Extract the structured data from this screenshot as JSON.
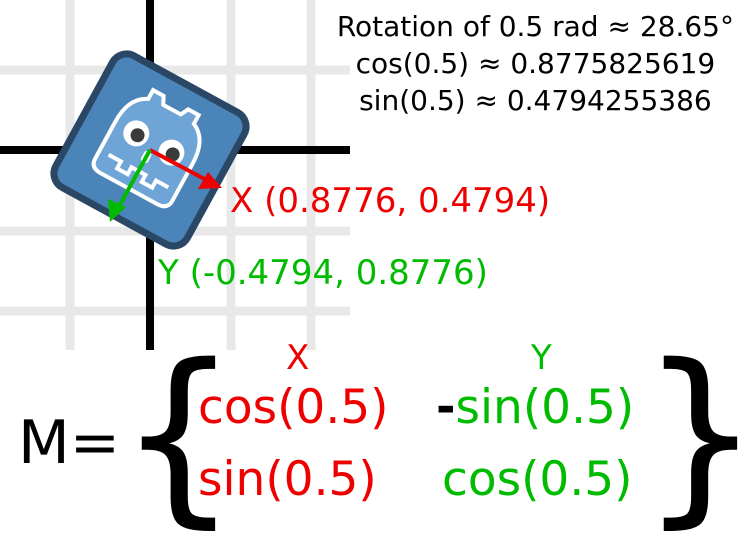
{
  "info_lines": [
    "Rotation of 0.5 rad ≈ 28.65°",
    "cos(0.5) ≈ 0.8775825619",
    "sin(0.5) ≈ 0.4794255386"
  ],
  "x_vector_label": "X (0.8776, 0.4794)",
  "y_vector_label": "Y (-0.4794, 0.8776)",
  "matrix": {
    "name": "M=",
    "col_x_header": "X",
    "col_y_header": "Y",
    "r1c1": "cos(0.5)",
    "r1c2_sign": "-",
    "r1c2": "sin(0.5)",
    "r2c1": "sin(0.5)",
    "r2c2": "cos(0.5)",
    "open_brace": "{",
    "close_brace": "}"
  },
  "colors": {
    "x_axis": "#ee0000",
    "y_axis": "#00bb00",
    "grid": "#e8e8e8",
    "major_axis": "#000000",
    "logo_border": "#2b4766",
    "logo_fill": "#4b84b8"
  },
  "icons": [
    "godot-logo-icon"
  ]
}
